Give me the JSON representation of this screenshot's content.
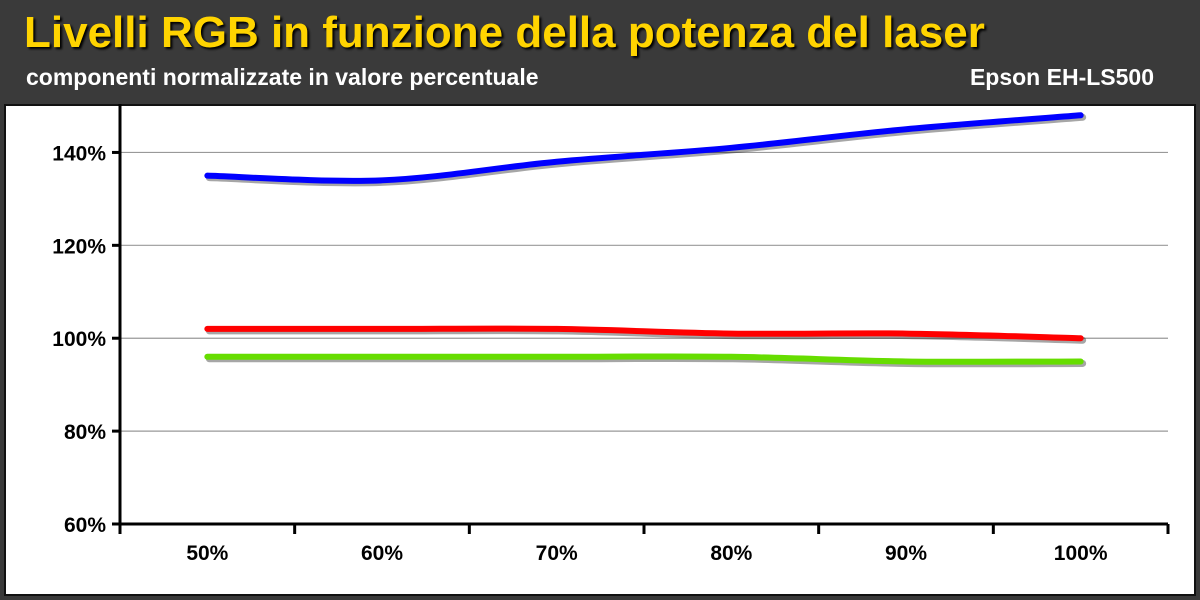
{
  "header": {
    "title": "Livelli RGB in funzione della potenza del laser",
    "subtitle": "componenti normalizzate in valore percentuale",
    "brand": "Epson EH-LS500"
  },
  "colors": {
    "background": "#3a3a3a",
    "title": "#ffd400",
    "blue": "#0000ff",
    "red": "#ff0000",
    "green": "#66dd00",
    "grid": "#999999"
  },
  "chart_data": {
    "type": "line",
    "categories": [
      "50%",
      "60%",
      "70%",
      "80%",
      "90%",
      "100%"
    ],
    "ylim": [
      60,
      150
    ],
    "yticks": [
      60,
      80,
      100,
      120,
      140
    ],
    "ytick_labels": [
      "60%",
      "80%",
      "100%",
      "120%",
      "140%"
    ],
    "grid": true,
    "legend": "none",
    "xlabel": "",
    "ylabel": "",
    "series": [
      {
        "color": "#0000ff",
        "values": [
          135,
          134,
          138,
          141,
          145,
          148
        ]
      },
      {
        "color": "#ff0000",
        "values": [
          102,
          102,
          102,
          101,
          101,
          100
        ]
      },
      {
        "color": "#66dd00",
        "values": [
          96,
          96,
          96,
          96,
          95,
          95
        ]
      }
    ]
  }
}
